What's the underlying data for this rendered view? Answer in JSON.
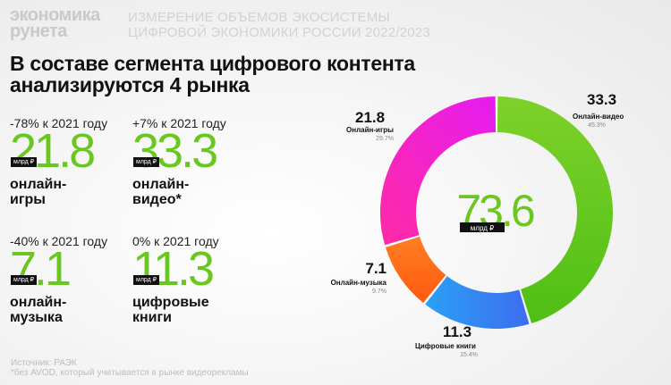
{
  "brand": {
    "line1": "экономика",
    "line2": "рунета"
  },
  "subtitle": {
    "line1": "ИЗМЕРЕНИЕ ОБЪЕМОВ ЭКОСИСТЕМЫ",
    "line2": "ЦИФРОВОЙ ЭКОНОМИКИ РОССИИ 2022/2023"
  },
  "headline": {
    "line1": "В составе сегмента цифрового контента",
    "line2": "анализируются 4 рынка"
  },
  "stats": [
    {
      "change": "-78% к 2021 году",
      "value": "21.8",
      "unit": "млрд ₽",
      "label1": "онлайн-",
      "label2": "игры"
    },
    {
      "change": "+7% к 2021 году",
      "value": "33.3",
      "unit": "млрд ₽",
      "label1": "онлайн-",
      "label2": "видео*"
    },
    {
      "change": "-40% к 2021 году",
      "value": "7.1",
      "unit": "млрд ₽",
      "label1": "онлайн-",
      "label2": "музыка"
    },
    {
      "change": "0% к 2021 году",
      "value": "11.3",
      "unit": "млрд ₽",
      "label1": "цифровые",
      "label2": "книги"
    }
  ],
  "chart_data": {
    "type": "pie",
    "variant": "donut",
    "total": "73.6",
    "total_unit": "млрд ₽",
    "slices": [
      {
        "name": "Онлайн-видео",
        "value": 33.3,
        "share": "45.3%",
        "color": "#6ac71f"
      },
      {
        "name": "Цифровые книги",
        "value": 11.3,
        "share": "15.4%",
        "color": "#2f7cf6"
      },
      {
        "name": "Онлайн-музыка",
        "value": 7.1,
        "share": "9.7%",
        "color": "#ff6a1a"
      },
      {
        "name": "Онлайн-игры",
        "value": 21.8,
        "share": "29.7%",
        "color": "#f024d8"
      }
    ]
  },
  "footer": {
    "line1": "Источник: РАЭК",
    "line2": "*без AVOD, который учитывается в рынке видеорекламы"
  }
}
